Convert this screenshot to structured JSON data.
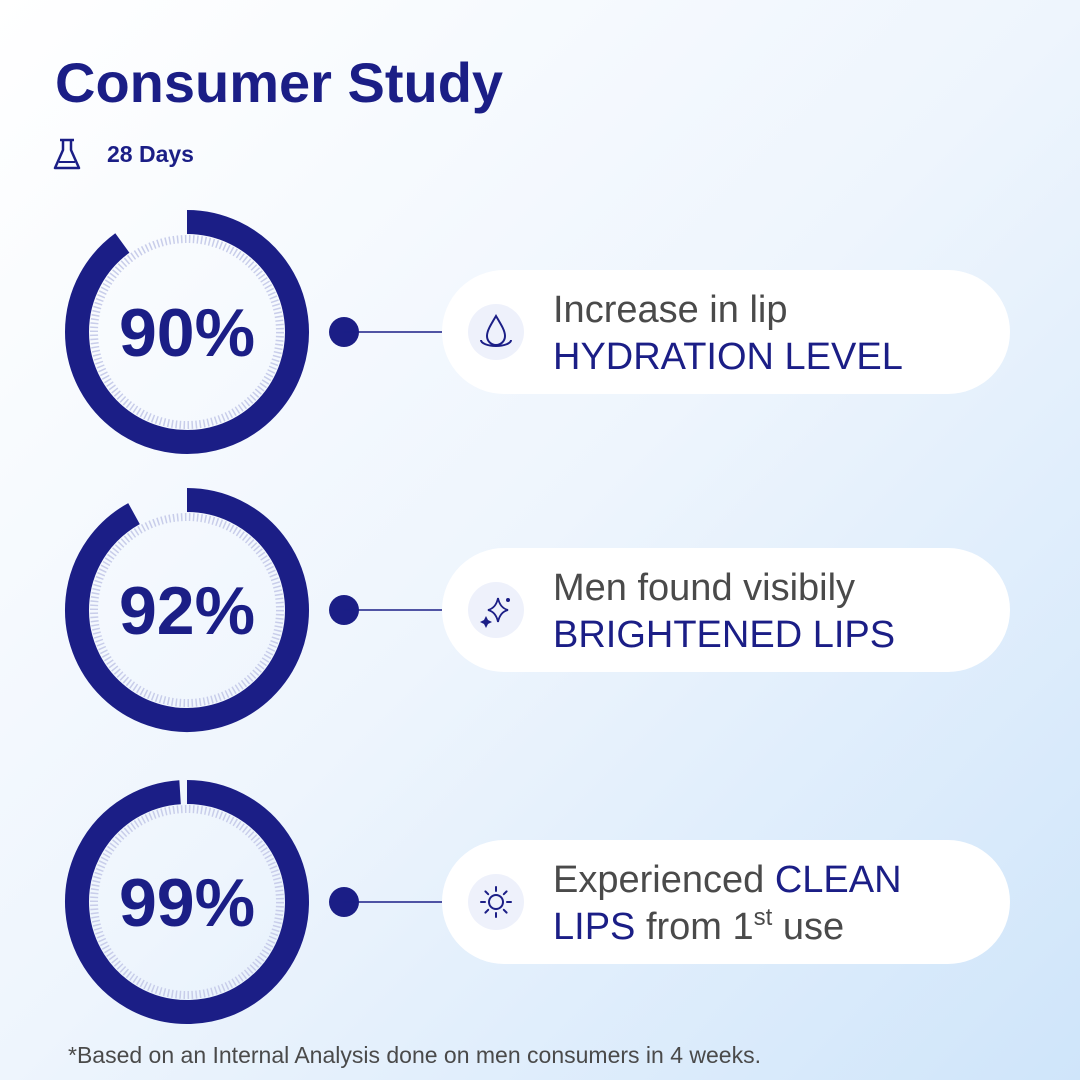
{
  "header": {
    "title": "Consumer Study",
    "duration": "28 Days"
  },
  "stats": [
    {
      "value": 90,
      "value_label": "90%",
      "lines": [
        [
          {
            "text": "Increase in lip",
            "style": "plain"
          }
        ],
        [
          {
            "text": "HYDRATION LEVEL",
            "style": "strong"
          }
        ]
      ]
    },
    {
      "value": 92,
      "value_label": "92%",
      "lines": [
        [
          {
            "text": "Men found visibily",
            "style": "plain"
          }
        ],
        [
          {
            "text": "BRIGHTENED LIPS",
            "style": "strong"
          }
        ]
      ]
    },
    {
      "value": 99,
      "value_label": "99%",
      "lines": [
        [
          {
            "text": "Experienced ",
            "style": "plain"
          },
          {
            "text": "CLEAN",
            "style": "strong"
          }
        ],
        [
          {
            "text": "LIPS",
            "style": "strong"
          },
          {
            "text": " from 1",
            "style": "plain"
          },
          {
            "text": "st",
            "style": "sup"
          },
          {
            "text": " use",
            "style": "plain"
          }
        ]
      ]
    }
  ],
  "footnote": "*Based on an Internal Analysis done on men consumers in 4 weeks."
}
